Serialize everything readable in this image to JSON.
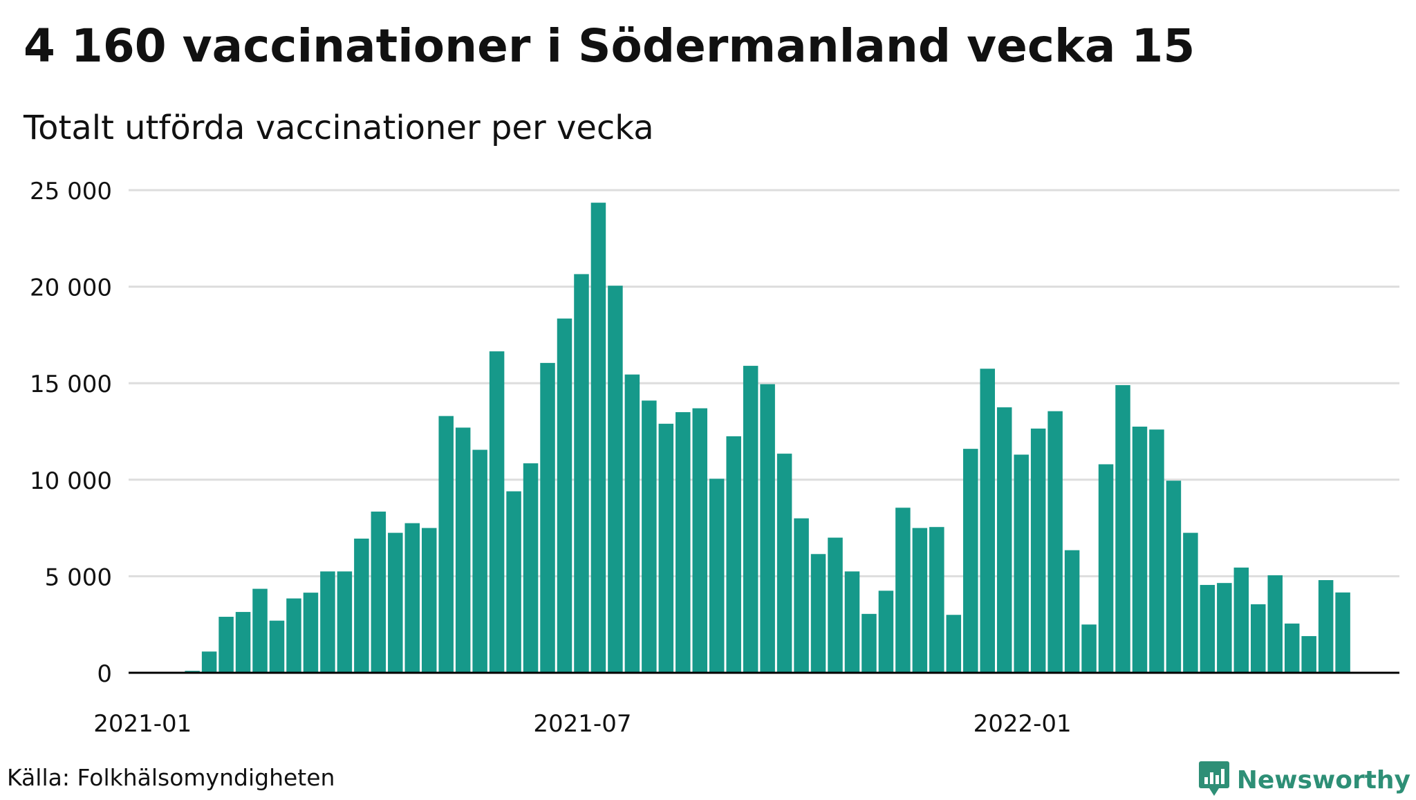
{
  "title": "4 160 vaccinationer i Södermanland vecka 15",
  "subtitle": "Totalt utförda vaccinationer per vecka",
  "source": "Källa: Folkhälsomyndigheten",
  "brand": {
    "name": "Newsworthy",
    "logo_icon": "bar-chart-badge-icon",
    "color": "#2e8f76"
  },
  "colors": {
    "bar": "#16998a",
    "grid": "#dddddd",
    "axis": "#000000"
  },
  "chart_data": {
    "type": "bar",
    "title": "4 160 vaccinationer i Södermanland vecka 15",
    "subtitle": "Totalt utförda vaccinationer per vecka",
    "xlabel": "",
    "ylabel": "",
    "ylim": [
      0,
      25000
    ],
    "yticks": [
      0,
      5000,
      10000,
      15000,
      20000,
      25000
    ],
    "ytick_labels": [
      "0",
      "5 000",
      "10 000",
      "15 000",
      "20 000",
      "25 000"
    ],
    "xtick_labels": [
      {
        "label": "2021-01",
        "index": 0.5
      },
      {
        "label": "2021-07",
        "index": 26.5
      },
      {
        "label": "2022-01",
        "index": 52.5
      }
    ],
    "grid": true,
    "legend": "none",
    "values": [
      0,
      0,
      0,
      100,
      1100,
      2900,
      3150,
      4350,
      2700,
      3850,
      4150,
      5250,
      5250,
      6950,
      8350,
      7250,
      7750,
      7500,
      13300,
      12700,
      11550,
      16650,
      9400,
      10850,
      16050,
      18350,
      20650,
      24350,
      20050,
      15450,
      14100,
      12900,
      13500,
      13700,
      10050,
      12250,
      15900,
      14950,
      11350,
      8000,
      6150,
      7000,
      5250,
      3050,
      4250,
      8550,
      7500,
      7550,
      3000,
      11600,
      15750,
      13750,
      11300,
      12650,
      13550,
      6350,
      2500,
      10800,
      14900,
      12750,
      12600,
      9950,
      7250,
      4550,
      4650,
      5450,
      3550,
      5050,
      2550,
      1900,
      4800,
      4160
    ]
  }
}
